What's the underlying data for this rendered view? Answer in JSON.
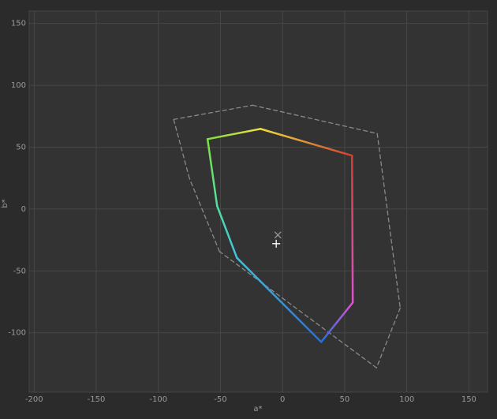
{
  "chart_data": {
    "type": "gamut",
    "x_label": "a*",
    "y_label": "b*",
    "xlim": [
      -204,
      165
    ],
    "ylim": [
      -148,
      160
    ],
    "xticks": [
      -200,
      -150,
      -100,
      -50,
      0,
      50,
      100,
      150
    ],
    "yticks": [
      -100,
      -50,
      0,
      50,
      100,
      150
    ],
    "grid": true,
    "series": [
      {
        "color": "#8a8a8a",
        "dashed": true,
        "closed": true,
        "x": [
          -87.7,
          -24.1,
          76.2,
          94.7,
          75.6,
          -50.8,
          -75
        ],
        "values": [
          72.4,
          83.9,
          61.0,
          -80,
          -128.3,
          -34.3,
          24.8
        ]
      },
      {
        "closed": true,
        "colors": [
          "#7fe040",
          "#f0e040",
          "#d04030",
          "#e050d0",
          "#2070e0",
          "#40c0e0",
          "#50e0a0"
        ],
        "x": [
          -60.4,
          -17.8,
          55.9,
          56.5,
          31.1,
          -36.8,
          -52.7
        ],
        "values": [
          56.5,
          64.8,
          43.2,
          -75.6,
          -107.4,
          -39.4,
          2.5
        ]
      }
    ],
    "markers": [
      {
        "symbol": "x",
        "color": "#9a9a9a",
        "x": -3.8,
        "y": -21
      },
      {
        "symbol": "+",
        "color": "#ffffff",
        "x": -5.1,
        "y": -28
      }
    ]
  }
}
